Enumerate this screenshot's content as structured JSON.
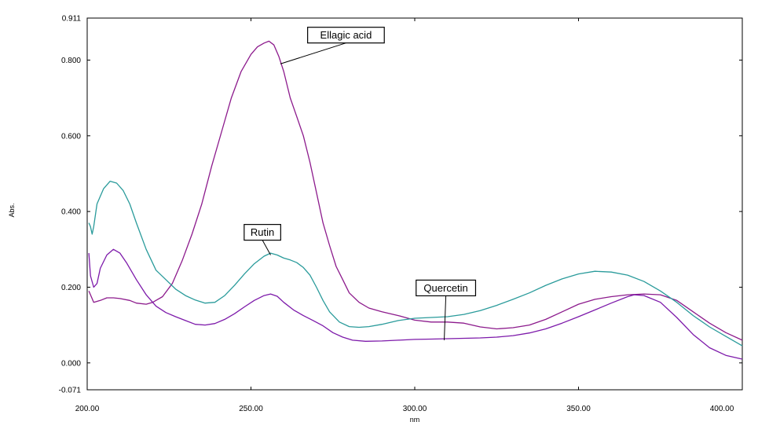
{
  "chart_data": {
    "type": "line",
    "xlabel": "nm",
    "ylabel": "Abs.",
    "xlim": [
      200.0,
      400.0
    ],
    "ylim": [
      -0.071,
      0.911
    ],
    "grid": false,
    "x_ticks": [
      "200.00",
      "250.00",
      "300.00",
      "350.00",
      "400.00"
    ],
    "y_ticks": [
      "0.911",
      "0.800",
      "0.600",
      "0.400",
      "0.200",
      "0.000",
      "-0.071"
    ],
    "series": [
      {
        "name": "Ellagic acid",
        "color": "#8c1a8c",
        "x": [
          200.5,
          201,
          202,
          204,
          206,
          208,
          210,
          213,
          215,
          218,
          220,
          223,
          226,
          229,
          232,
          235,
          238,
          241,
          244,
          247,
          250,
          252,
          254,
          255.5,
          257,
          258.5,
          260,
          262,
          264,
          266,
          268,
          270,
          272,
          274,
          276,
          278,
          280,
          283,
          286,
          290,
          295,
          300,
          305,
          310,
          315,
          320,
          325,
          330,
          335,
          340,
          345,
          350,
          355,
          360,
          365,
          370,
          375,
          380,
          385,
          390,
          395,
          400
        ],
        "y": [
          0.19,
          0.18,
          0.16,
          0.165,
          0.172,
          0.172,
          0.17,
          0.165,
          0.158,
          0.155,
          0.16,
          0.175,
          0.21,
          0.27,
          0.34,
          0.42,
          0.52,
          0.61,
          0.7,
          0.77,
          0.815,
          0.835,
          0.845,
          0.85,
          0.84,
          0.81,
          0.77,
          0.7,
          0.65,
          0.6,
          0.53,
          0.45,
          0.37,
          0.31,
          0.255,
          0.22,
          0.185,
          0.16,
          0.145,
          0.135,
          0.125,
          0.113,
          0.108,
          0.108,
          0.105,
          0.095,
          0.09,
          0.093,
          0.1,
          0.115,
          0.135,
          0.155,
          0.168,
          0.175,
          0.18,
          0.182,
          0.18,
          0.165,
          0.135,
          0.105,
          0.08,
          0.06
        ]
      },
      {
        "name": "Rutin",
        "color": "#2a9b9b",
        "x": [
          200.5,
          201,
          201.5,
          202,
          203,
          205,
          207,
          209,
          211,
          213,
          215,
          218,
          221,
          224,
          227,
          230,
          233,
          236,
          239,
          242,
          245,
          248,
          251,
          254,
          256,
          258,
          260,
          262,
          264,
          266,
          268,
          270,
          272,
          274,
          277,
          280,
          283,
          286,
          290,
          295,
          300,
          305,
          310,
          315,
          320,
          325,
          330,
          335,
          340,
          345,
          350,
          355,
          360,
          365,
          370,
          375,
          380,
          385,
          390,
          395,
          400
        ],
        "y": [
          0.37,
          0.36,
          0.34,
          0.36,
          0.42,
          0.46,
          0.48,
          0.475,
          0.455,
          0.42,
          0.37,
          0.3,
          0.245,
          0.22,
          0.195,
          0.178,
          0.166,
          0.158,
          0.16,
          0.178,
          0.205,
          0.235,
          0.262,
          0.282,
          0.29,
          0.285,
          0.277,
          0.272,
          0.265,
          0.252,
          0.232,
          0.2,
          0.165,
          0.135,
          0.108,
          0.096,
          0.094,
          0.096,
          0.102,
          0.112,
          0.118,
          0.12,
          0.122,
          0.128,
          0.138,
          0.152,
          0.168,
          0.185,
          0.205,
          0.222,
          0.235,
          0.242,
          0.24,
          0.232,
          0.215,
          0.19,
          0.16,
          0.125,
          0.095,
          0.07,
          0.045
        ]
      },
      {
        "name": "Quercetin",
        "color": "#7d1aaa",
        "x": [
          200.5,
          201,
          202,
          203,
          204,
          206,
          208,
          210,
          212,
          215,
          218,
          221,
          224,
          227,
          230,
          233,
          236,
          239,
          242,
          245,
          248,
          251,
          254,
          256,
          258,
          260,
          263,
          266,
          269,
          272,
          275,
          278,
          281,
          285,
          290,
          295,
          300,
          305,
          310,
          315,
          320,
          325,
          330,
          335,
          340,
          345,
          350,
          355,
          360,
          365,
          367,
          370,
          375,
          380,
          385,
          390,
          395,
          400
        ],
        "y": [
          0.29,
          0.23,
          0.2,
          0.21,
          0.25,
          0.285,
          0.3,
          0.29,
          0.265,
          0.22,
          0.18,
          0.15,
          0.133,
          0.122,
          0.112,
          0.102,
          0.1,
          0.104,
          0.115,
          0.13,
          0.148,
          0.165,
          0.178,
          0.182,
          0.176,
          0.16,
          0.14,
          0.125,
          0.112,
          0.098,
          0.08,
          0.068,
          0.06,
          0.057,
          0.058,
          0.06,
          0.062,
          0.063,
          0.064,
          0.065,
          0.066,
          0.068,
          0.072,
          0.079,
          0.09,
          0.105,
          0.122,
          0.14,
          0.158,
          0.175,
          0.18,
          0.178,
          0.16,
          0.12,
          0.075,
          0.04,
          0.02,
          0.01
        ]
      }
    ],
    "annotations": [
      {
        "text": "Ellagic acid",
        "series": 0,
        "at_x": 259,
        "at_y": 0.79,
        "box_x": 279.0,
        "box_y": 0.866
      },
      {
        "text": "Rutin",
        "series": 1,
        "at_x": 256,
        "at_y": 0.285,
        "box_x": 253.5,
        "box_y": 0.345
      },
      {
        "text": "Quercetin",
        "series": 2,
        "at_x": 309,
        "at_y": 0.06,
        "box_x": 309.5,
        "box_y": 0.198
      }
    ]
  }
}
